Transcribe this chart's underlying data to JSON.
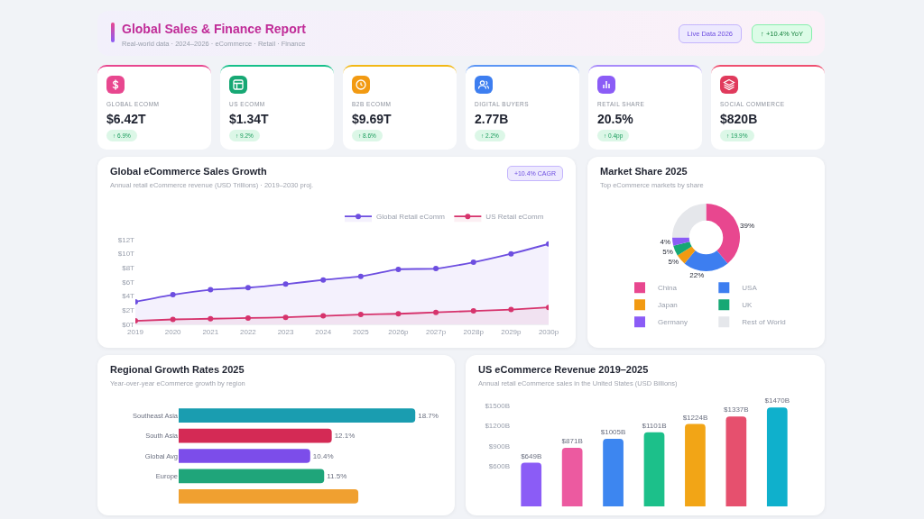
{
  "chart_data": [
    {
      "type": "other",
      "title": "Global Sales & Finance Report",
      "subtitle": "Real-world data · 2024–2026 · eCommerce · Retail · Finance",
      "annotations": [
        "Live Data 2026",
        "↑ +10.4% YoY",
        "GLOBAL ECOMM",
        "$6.42T",
        "↑ 6.9%",
        "US ECOMM",
        "$1.34T",
        "↑ 9.2%",
        "B2B ECOMM",
        "$9.69T",
        "↑ 8.6%",
        "DIGITAL BUYERS",
        "2.77B",
        "↑ 2.2%",
        "RETAIL SHARE",
        "20.5%",
        "↑ 0.4pp",
        "SOCIAL COMMERCE",
        "$820B",
        "↑ 19.9%"
      ]
    },
    {
      "type": "area",
      "title": "Global eCommerce Sales Growth",
      "subtitle": "Annual retail eCommerce revenue (USD Trillions) · 2019–2030 proj.",
      "annotations": [
        "+10.4% CAGR"
      ],
      "categories": [
        "2019",
        "2020",
        "2021",
        "2022",
        "2023",
        "2024",
        "2025",
        "2026p",
        "2027p",
        "2028p",
        "2029p",
        "2030p"
      ],
      "series": [
        {
          "name": "Global Retail eComm",
          "color": "#6d4ee0",
          "values": [
            3.2,
            4.2,
            4.9,
            5.2,
            5.7,
            6.3,
            6.8,
            7.8,
            7.9,
            8.8,
            10.0,
            11.4
          ]
        },
        {
          "name": "US Retail eComm",
          "color": "#d6336c",
          "values": [
            0.5,
            0.7,
            0.8,
            0.9,
            1.0,
            1.2,
            1.4,
            1.5,
            1.7,
            1.9,
            2.1,
            2.4
          ]
        }
      ],
      "ylim": [
        0,
        12
      ],
      "yticks": [
        {
          "value": 0,
          "label": "$0T"
        },
        {
          "value": 2,
          "label": "$2T"
        },
        {
          "value": 4,
          "label": "$4T"
        },
        {
          "value": 6,
          "label": "$6T"
        },
        {
          "value": 8,
          "label": "$8T"
        },
        {
          "value": 10,
          "label": "$10T"
        },
        {
          "value": 12,
          "label": "$12T"
        }
      ],
      "grid": false,
      "legend": "top right",
      "marker": "circle"
    },
    {
      "type": "donut",
      "title": "Market Share 2025",
      "subtitle": "Top eCommerce markets by share",
      "categories": [
        "China",
        "USA",
        "Japan",
        "UK",
        "Germany",
        "Rest of World"
      ],
      "values": [
        39,
        22,
        5,
        5,
        4,
        25
      ],
      "colors": [
        "#e8478f",
        "#3d7ef0",
        "#f29a12",
        "#16a874",
        "#8b5cf6",
        "#e5e7eb"
      ],
      "value_labels": [
        "39%",
        "22%",
        "5%",
        "5%",
        "4%",
        null
      ],
      "legend": "bottom"
    },
    {
      "type": "bar",
      "orientation": "horizontal",
      "title": "Regional Growth Rates 2025",
      "subtitle": "Year-over-year eCommerce growth by region",
      "categories": [
        "Southeast Asia",
        "South Asia",
        "Global Avg",
        "Europe",
        null
      ],
      "values": [
        18.7,
        12.1,
        10.4,
        11.5,
        14.2
      ],
      "colors": [
        "#1a9db0",
        "#d42a55",
        "#7c4dea",
        "#1fa57a",
        "#f0a030"
      ],
      "value_labels": [
        "18.7%",
        "12.1%",
        "10.4%",
        "11.5%",
        null
      ]
    },
    {
      "type": "bar",
      "title": "US eCommerce Revenue 2019–2025",
      "subtitle": "Annual retail eCommerce sales in the United States (USD Billions)",
      "categories": [
        null,
        null,
        null,
        null,
        null,
        null,
        null
      ],
      "values": [
        649,
        871,
        1005,
        1101,
        1224,
        1337,
        1470
      ],
      "colors": [
        "#8b5cf6",
        "#ec5aa0",
        "#3d86f0",
        "#1cc08a",
        "#f2a516",
        "#e6506e",
        "#0fb0cc"
      ],
      "value_labels": [
        "$649B",
        "$871B",
        "$1005B",
        "$1101B",
        "$1224B",
        "$1337B",
        "$1470B"
      ],
      "ylim": [
        0,
        1500
      ],
      "yticks": [
        {
          "value": 600,
          "label": "$600B"
        },
        {
          "value": 900,
          "label": "$900B"
        },
        {
          "value": 1200,
          "label": "$1200B"
        },
        {
          "value": 1500,
          "label": "$1500B"
        }
      ],
      "tick_labels": "y"
    }
  ]
}
